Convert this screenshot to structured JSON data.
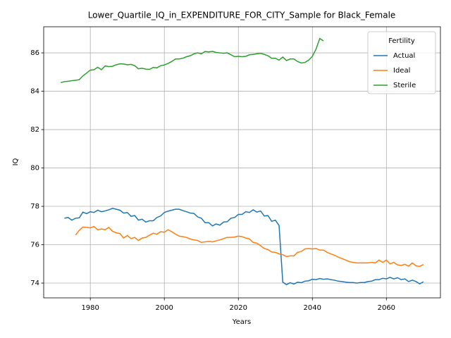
{
  "chart_data": {
    "type": "line",
    "title": "Lower_Quartile_IQ_in_EXPENDITURE_FOR_CITY_Sample for Black_Female",
    "xlabel": "Years",
    "ylabel": "IQ",
    "legend_title": "Fertility",
    "legend": "upper right",
    "grid": true,
    "xlim": [
      1967.4,
      2074.6
    ],
    "ylim": [
      73.23,
      87.36
    ],
    "xticks": [
      1980,
      2000,
      2020,
      2040,
      2060
    ],
    "yticks": [
      74,
      76,
      78,
      80,
      82,
      84,
      86
    ],
    "x": [
      1972,
      1973,
      1974,
      1975,
      1976,
      1977,
      1978,
      1979,
      1980,
      1981,
      1982,
      1983,
      1984,
      1985,
      1986,
      1987,
      1988,
      1989,
      1990,
      1991,
      1992,
      1993,
      1994,
      1995,
      1996,
      1997,
      1998,
      1999,
      2000,
      2001,
      2002,
      2003,
      2004,
      2005,
      2006,
      2007,
      2008,
      2009,
      2010,
      2011,
      2012,
      2013,
      2014,
      2015,
      2016,
      2017,
      2018,
      2019,
      2020,
      2021,
      2022,
      2023,
      2024,
      2025,
      2026,
      2027,
      2028,
      2029,
      2030,
      2031,
      2032,
      2033,
      2034,
      2035,
      2036,
      2037,
      2038,
      2039,
      2040,
      2041,
      2042,
      2043,
      2044,
      2045,
      2046,
      2047,
      2048,
      2049,
      2050,
      2051,
      2052,
      2053,
      2054,
      2055,
      2056,
      2057,
      2058,
      2059,
      2060,
      2061,
      2062,
      2063,
      2064,
      2065,
      2066,
      2067,
      2068,
      2069,
      2070
    ],
    "series": [
      {
        "name": "Actual",
        "color": "#1f77b4",
        "values": [
          null,
          77.38,
          77.42,
          77.28,
          77.38,
          77.4,
          77.7,
          77.62,
          77.72,
          77.68,
          77.8,
          77.72,
          77.76,
          77.82,
          77.9,
          77.85,
          77.8,
          77.65,
          77.68,
          77.48,
          77.52,
          77.28,
          77.33,
          77.18,
          77.25,
          77.25,
          77.42,
          77.5,
          77.68,
          77.75,
          77.8,
          77.85,
          77.85,
          77.78,
          77.72,
          77.65,
          77.63,
          77.45,
          77.38,
          77.15,
          77.15,
          76.98,
          77.08,
          77.02,
          77.18,
          77.2,
          77.38,
          77.42,
          77.58,
          77.58,
          77.72,
          77.68,
          77.82,
          77.7,
          77.76,
          77.5,
          77.52,
          77.22,
          77.28,
          77.0,
          74.05,
          73.92,
          74.02,
          73.95,
          74.05,
          74.02,
          74.1,
          74.12,
          74.2,
          74.18,
          74.24,
          74.2,
          74.22,
          74.18,
          74.15,
          74.1,
          74.08,
          74.05,
          74.03,
          74.03,
          74.0,
          74.03,
          74.03,
          74.08,
          74.1,
          74.18,
          74.18,
          74.25,
          74.22,
          74.3,
          74.22,
          74.28,
          74.18,
          74.22,
          74.08,
          74.15,
          74.08,
          73.96,
          74.07
        ]
      },
      {
        "name": "Ideal",
        "color": "#ff7f0e",
        "values": [
          null,
          null,
          null,
          null,
          76.5,
          76.75,
          76.92,
          76.9,
          76.88,
          76.95,
          76.78,
          76.82,
          76.78,
          76.9,
          76.7,
          76.62,
          76.58,
          76.35,
          76.48,
          76.32,
          76.38,
          76.22,
          76.35,
          76.38,
          76.5,
          76.6,
          76.55,
          76.68,
          76.65,
          76.78,
          76.68,
          76.55,
          76.45,
          76.42,
          76.38,
          76.3,
          76.25,
          76.22,
          76.12,
          76.15,
          76.17,
          76.15,
          76.2,
          76.25,
          76.32,
          76.38,
          76.38,
          76.4,
          76.45,
          76.42,
          76.35,
          76.3,
          76.12,
          76.08,
          75.95,
          75.8,
          75.75,
          75.62,
          75.6,
          75.52,
          75.48,
          75.38,
          75.42,
          75.42,
          75.6,
          75.65,
          75.78,
          75.8,
          75.78,
          75.8,
          75.72,
          75.72,
          75.6,
          75.52,
          75.45,
          75.35,
          75.28,
          75.2,
          75.12,
          75.08,
          75.05,
          75.05,
          75.05,
          75.05,
          75.08,
          75.05,
          75.2,
          75.08,
          75.2,
          75.0,
          75.08,
          74.95,
          74.92,
          74.98,
          74.88,
          75.05,
          74.9,
          74.87,
          74.97
        ]
      },
      {
        "name": "Sterile",
        "color": "#2ca02c",
        "values": [
          84.45,
          84.5,
          84.52,
          84.55,
          84.57,
          84.6,
          84.8,
          84.95,
          85.1,
          85.12,
          85.25,
          85.12,
          85.32,
          85.28,
          85.3,
          85.38,
          85.43,
          85.42,
          85.38,
          85.4,
          85.33,
          85.17,
          85.2,
          85.15,
          85.14,
          85.24,
          85.22,
          85.33,
          85.37,
          85.45,
          85.55,
          85.68,
          85.68,
          85.72,
          85.8,
          85.85,
          85.95,
          86.0,
          85.95,
          86.07,
          86.05,
          86.08,
          86.02,
          86.0,
          85.98,
          86.0,
          85.9,
          85.8,
          85.82,
          85.8,
          85.82,
          85.9,
          85.92,
          85.95,
          85.98,
          85.92,
          85.85,
          85.72,
          85.72,
          85.62,
          85.78,
          85.6,
          85.68,
          85.68,
          85.55,
          85.47,
          85.5,
          85.62,
          85.82,
          86.2,
          86.75,
          86.62,
          null,
          null,
          null,
          null,
          null,
          null,
          null,
          null,
          null,
          null,
          null,
          null,
          null,
          null,
          null,
          null,
          null,
          null,
          null,
          null,
          null,
          null,
          null,
          null,
          null,
          null,
          null
        ]
      }
    ]
  }
}
